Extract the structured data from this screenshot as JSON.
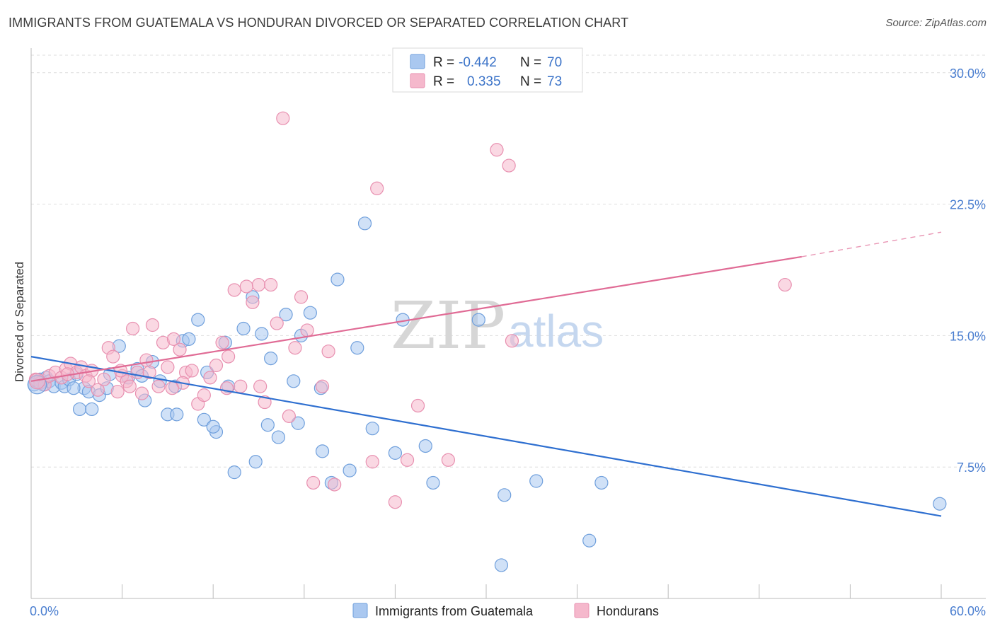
{
  "title": "IMMIGRANTS FROM GUATEMALA VS HONDURAN DIVORCED OR SEPARATED CORRELATION CHART",
  "source": "Source: ZipAtlas.com",
  "watermark": {
    "zip": "ZIP",
    "atlas": "atlas"
  },
  "colors": {
    "blue_fill": "#aac8f0",
    "blue_stroke": "#6f9fdc",
    "blue_line": "#2e6fd0",
    "pink_fill": "#f5b8cc",
    "pink_stroke": "#e890b0",
    "pink_line": "#e06b95",
    "grid": "#dedede",
    "tick_text": "#4a7ed0"
  },
  "legend": {
    "rows": [
      {
        "r_label": "R =",
        "r_value": "-0.442",
        "n_label": "N =",
        "n_value": "70"
      },
      {
        "r_label": "R =",
        "r_value": "0.335",
        "n_label": "N =",
        "n_value": "73"
      }
    ]
  },
  "chart_data": {
    "type": "scatter",
    "title": "IMMIGRANTS FROM GUATEMALA VS HONDURAN DIVORCED OR SEPARATED CORRELATION CHART",
    "xlabel": "",
    "ylabel": "Divorced or Separated",
    "xlim": [
      0,
      60
    ],
    "ylim": [
      0,
      31
    ],
    "x_tick_labels": [
      "0.0%",
      "60.0%"
    ],
    "y_ticks": [
      7.5,
      15.0,
      22.5,
      30.0
    ],
    "y_tick_labels": [
      "7.5%",
      "15.0%",
      "22.5%",
      "30.0%"
    ],
    "grid": "horizontal dashed",
    "legend_position": "top-center",
    "series": [
      {
        "name": "Immigrants from Guatemala",
        "color": "blue",
        "R": -0.442,
        "N": 70,
        "trend": {
          "x": [
            0,
            60
          ],
          "y": [
            13.8,
            4.7
          ]
        },
        "points": [
          [
            0.2,
            12.2
          ],
          [
            0.4,
            12.4
          ],
          [
            0.6,
            12.5
          ],
          [
            0.8,
            12.2
          ],
          [
            1.0,
            12.6
          ],
          [
            1.2,
            12.4
          ],
          [
            1.5,
            12.1
          ],
          [
            2.0,
            12.3
          ],
          [
            2.2,
            12.1
          ],
          [
            2.5,
            12.5
          ],
          [
            3.0,
            12.8
          ],
          [
            3.5,
            12.0
          ],
          [
            3.8,
            11.8
          ],
          [
            4.5,
            11.6
          ],
          [
            5.2,
            12.8
          ],
          [
            5.8,
            14.4
          ],
          [
            6.4,
            12.6
          ],
          [
            7.0,
            13.1
          ],
          [
            7.5,
            11.3
          ],
          [
            8.0,
            13.5
          ],
          [
            8.5,
            12.4
          ],
          [
            9.0,
            10.5
          ],
          [
            9.5,
            12.1
          ],
          [
            10.0,
            14.7
          ],
          [
            10.4,
            14.8
          ],
          [
            11.0,
            15.9
          ],
          [
            11.6,
            12.9
          ],
          [
            12.2,
            9.5
          ],
          [
            12.8,
            14.6
          ],
          [
            13.4,
            7.2
          ],
          [
            14.0,
            15.4
          ],
          [
            14.6,
            17.2
          ],
          [
            15.2,
            15.1
          ],
          [
            15.8,
            13.7
          ],
          [
            16.3,
            9.2
          ],
          [
            16.8,
            16.2
          ],
          [
            17.3,
            12.4
          ],
          [
            17.8,
            15.0
          ],
          [
            18.4,
            16.3
          ],
          [
            19.2,
            8.4
          ],
          [
            19.8,
            6.6
          ],
          [
            20.2,
            18.2
          ],
          [
            21.0,
            7.3
          ],
          [
            21.5,
            14.3
          ],
          [
            22.0,
            21.4
          ],
          [
            22.5,
            9.7
          ],
          [
            24.0,
            8.3
          ],
          [
            24.5,
            15.9
          ],
          [
            26.0,
            8.7
          ],
          [
            26.5,
            6.6
          ],
          [
            29.5,
            15.9
          ],
          [
            31.0,
            1.9
          ],
          [
            31.2,
            5.9
          ],
          [
            33.3,
            6.7
          ],
          [
            36.8,
            3.3
          ],
          [
            37.6,
            6.6
          ],
          [
            59.9,
            5.4
          ],
          [
            3.2,
            10.8
          ],
          [
            4.0,
            10.8
          ],
          [
            9.6,
            10.5
          ],
          [
            11.4,
            10.2
          ],
          [
            12.0,
            9.8
          ],
          [
            15.6,
            9.9
          ],
          [
            17.6,
            10.0
          ],
          [
            14.8,
            7.8
          ],
          [
            19.1,
            12.0
          ],
          [
            2.8,
            12.0
          ],
          [
            13.0,
            12.1
          ],
          [
            7.3,
            12.7
          ],
          [
            5.0,
            12.0
          ]
        ]
      },
      {
        "name": "Hondurans",
        "color": "pink",
        "R": 0.335,
        "N": 73,
        "trend": {
          "x": [
            0,
            50.8
          ],
          "y": [
            12.4,
            19.5
          ]
        },
        "trend_dashed": {
          "x": [
            50.8,
            60
          ],
          "y": [
            19.5,
            20.9
          ]
        },
        "points": [
          [
            0.3,
            12.5
          ],
          [
            0.6,
            12.3
          ],
          [
            0.9,
            12.2
          ],
          [
            1.2,
            12.7
          ],
          [
            1.6,
            12.9
          ],
          [
            2.0,
            12.6
          ],
          [
            2.3,
            13.1
          ],
          [
            2.6,
            13.4
          ],
          [
            3.0,
            12.9
          ],
          [
            3.3,
            13.2
          ],
          [
            3.6,
            12.7
          ],
          [
            4.0,
            13.0
          ],
          [
            4.4,
            11.9
          ],
          [
            4.8,
            12.5
          ],
          [
            5.1,
            14.3
          ],
          [
            5.4,
            13.8
          ],
          [
            5.7,
            11.8
          ],
          [
            6.0,
            12.7
          ],
          [
            6.3,
            12.4
          ],
          [
            6.7,
            15.4
          ],
          [
            7.0,
            12.9
          ],
          [
            7.3,
            11.7
          ],
          [
            7.6,
            13.6
          ],
          [
            8.0,
            15.6
          ],
          [
            8.4,
            12.1
          ],
          [
            8.7,
            14.6
          ],
          [
            9.0,
            13.2
          ],
          [
            9.4,
            14.8
          ],
          [
            9.8,
            14.2
          ],
          [
            10.2,
            12.9
          ],
          [
            10.6,
            13.0
          ],
          [
            11.0,
            11.1
          ],
          [
            11.4,
            11.6
          ],
          [
            11.8,
            12.6
          ],
          [
            12.2,
            13.3
          ],
          [
            12.6,
            14.6
          ],
          [
            13.0,
            13.8
          ],
          [
            13.4,
            17.6
          ],
          [
            13.8,
            12.1
          ],
          [
            14.2,
            17.8
          ],
          [
            14.6,
            16.9
          ],
          [
            15.0,
            17.9
          ],
          [
            15.4,
            11.2
          ],
          [
            15.8,
            17.9
          ],
          [
            16.2,
            15.7
          ],
          [
            16.6,
            27.4
          ],
          [
            17.0,
            10.4
          ],
          [
            17.4,
            14.3
          ],
          [
            17.8,
            17.2
          ],
          [
            18.2,
            15.3
          ],
          [
            18.6,
            6.6
          ],
          [
            19.2,
            12.1
          ],
          [
            19.6,
            14.1
          ],
          [
            20.0,
            6.5
          ],
          [
            22.5,
            7.8
          ],
          [
            22.8,
            23.4
          ],
          [
            24.0,
            5.5
          ],
          [
            24.8,
            7.9
          ],
          [
            25.5,
            11.0
          ],
          [
            27.5,
            7.9
          ],
          [
            30.7,
            25.6
          ],
          [
            31.5,
            24.7
          ],
          [
            31.7,
            14.7
          ],
          [
            49.7,
            17.9
          ],
          [
            3.8,
            12.4
          ],
          [
            6.5,
            12.1
          ],
          [
            5.9,
            13.0
          ],
          [
            12.9,
            12.0
          ],
          [
            10.0,
            12.3
          ],
          [
            15.1,
            12.1
          ],
          [
            2.4,
            12.8
          ],
          [
            7.8,
            12.9
          ],
          [
            9.3,
            12.0
          ]
        ]
      }
    ]
  },
  "bottom_legend": [
    {
      "label": "Immigrants from Guatemala"
    },
    {
      "label": "Hondurans"
    }
  ]
}
